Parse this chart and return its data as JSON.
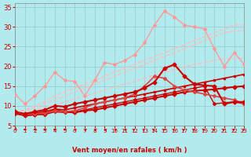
{
  "background_color": "#b2ebee",
  "grid_color": "#a0d0d5",
  "xlabel": "Vent moyen/en rafales ( km/h )",
  "xlim": [
    0,
    23
  ],
  "ylim": [
    5,
    36
  ],
  "yticks": [
    5,
    10,
    15,
    20,
    25,
    30,
    35
  ],
  "xticks": [
    0,
    1,
    2,
    3,
    4,
    5,
    6,
    7,
    8,
    9,
    10,
    11,
    12,
    13,
    14,
    15,
    16,
    17,
    18,
    19,
    20,
    21,
    22,
    23
  ],
  "lines": [
    {
      "y": [
        8.5,
        7.5,
        7.8,
        8.0,
        9.0,
        8.5,
        8.3,
        8.8,
        9.0,
        9.5,
        10.0,
        10.5,
        11.0,
        11.5,
        12.0,
        12.5,
        13.0,
        13.5,
        13.8,
        14.0,
        14.2,
        14.5,
        14.8,
        15.0
      ],
      "color": "#cc0000",
      "lw": 1.5,
      "marker": "D",
      "ms": 2.5,
      "zorder": 5,
      "linestyle": "-"
    },
    {
      "y": [
        8.5,
        7.8,
        8.2,
        8.5,
        9.2,
        9.0,
        9.5,
        10.0,
        10.5,
        11.0,
        11.5,
        12.0,
        12.5,
        13.0,
        13.5,
        14.0,
        14.5,
        15.0,
        15.5,
        16.0,
        16.5,
        17.0,
        17.5,
        18.0
      ],
      "color": "#cc0000",
      "lw": 1.2,
      "marker": "s",
      "ms": 2.0,
      "zorder": 4,
      "linestyle": "-"
    },
    {
      "y": [
        8.5,
        8.0,
        8.5,
        9.0,
        10.0,
        9.8,
        10.5,
        11.0,
        11.5,
        12.0,
        12.5,
        13.0,
        13.5,
        14.5,
        16.0,
        19.5,
        20.5,
        17.5,
        15.5,
        15.2,
        15.0,
        10.5,
        11.0,
        11.0
      ],
      "color": "#cc0000",
      "lw": 1.5,
      "marker": "D",
      "ms": 2.5,
      "zorder": 6,
      "linestyle": "-"
    },
    {
      "y": [
        13.0,
        10.5,
        12.5,
        15.0,
        18.5,
        16.5,
        16.2,
        12.5,
        16.5,
        21.0,
        20.5,
        21.5,
        23.0,
        26.0,
        30.5,
        34.0,
        32.5,
        30.5,
        30.0,
        29.5,
        24.5,
        20.0,
        23.5,
        20.5
      ],
      "color": "#ff9999",
      "lw": 1.0,
      "marker": "D",
      "ms": 2.0,
      "zorder": 3,
      "linestyle": "-"
    },
    {
      "y": [
        8.5,
        7.8,
        8.0,
        8.2,
        8.8,
        8.5,
        8.8,
        9.5,
        10.5,
        11.0,
        11.5,
        12.0,
        13.0,
        15.0,
        17.5,
        17.0,
        15.0,
        14.0,
        13.5,
        13.0,
        12.5,
        12.0,
        11.5,
        10.5
      ],
      "color": "#dd4444",
      "lw": 1.2,
      "marker": "D",
      "ms": 2.0,
      "zorder": 5,
      "linestyle": "-"
    },
    {
      "y": [
        8.0,
        7.5,
        7.8,
        7.8,
        8.5,
        8.3,
        8.5,
        9.0,
        9.5,
        10.0,
        10.5,
        11.0,
        11.5,
        12.0,
        12.5,
        13.0,
        13.5,
        14.0,
        14.5,
        15.0,
        10.5,
        10.8,
        11.0,
        10.5
      ],
      "color": "#cc0000",
      "lw": 1.0,
      "marker": "D",
      "ms": 2.0,
      "zorder": 4,
      "linestyle": "-"
    },
    {
      "y": [
        8.5,
        9.0,
        10.0,
        11.0,
        12.5,
        13.5,
        14.5,
        15.5,
        16.5,
        17.5,
        18.5,
        19.5,
        20.5,
        21.5,
        22.5,
        23.5,
        24.5,
        25.5,
        26.5,
        27.5,
        28.5,
        29.5,
        30.5,
        30.5
      ],
      "color": "#ffbbbb",
      "lw": 1.0,
      "marker": null,
      "ms": 0,
      "zorder": 2,
      "linestyle": "--"
    },
    {
      "y": [
        8.5,
        8.8,
        9.5,
        10.5,
        11.5,
        12.5,
        13.5,
        14.5,
        15.5,
        16.5,
        17.5,
        18.5,
        19.5,
        20.5,
        21.5,
        22.5,
        23.5,
        24.5,
        25.5,
        26.5,
        27.5,
        28.5,
        29.0,
        29.0
      ],
      "color": "#ffbbbb",
      "lw": 1.0,
      "marker": null,
      "ms": 0,
      "zorder": 2,
      "linestyle": "--"
    },
    {
      "y": [
        8.0,
        8.2,
        8.8,
        9.5,
        10.2,
        11.0,
        11.8,
        12.5,
        13.2,
        14.0,
        14.8,
        15.5,
        16.2,
        17.0,
        17.8,
        18.5,
        19.2,
        20.0,
        20.5,
        21.0,
        21.5,
        22.0,
        22.0,
        22.0
      ],
      "color": "#ffbbbb",
      "lw": 1.0,
      "marker": null,
      "ms": 0,
      "zorder": 2,
      "linestyle": "--"
    }
  ],
  "arrow_angles": [
    225,
    270,
    270,
    270,
    270,
    270,
    315,
    315,
    315,
    315,
    315,
    315,
    45,
    45,
    45,
    45,
    45,
    45,
    45,
    45,
    45,
    45,
    45,
    45
  ],
  "arrow_color": "#cc0000",
  "xlabel_fontsize": 6,
  "tick_fontsize_x": 5,
  "tick_fontsize_y": 6
}
